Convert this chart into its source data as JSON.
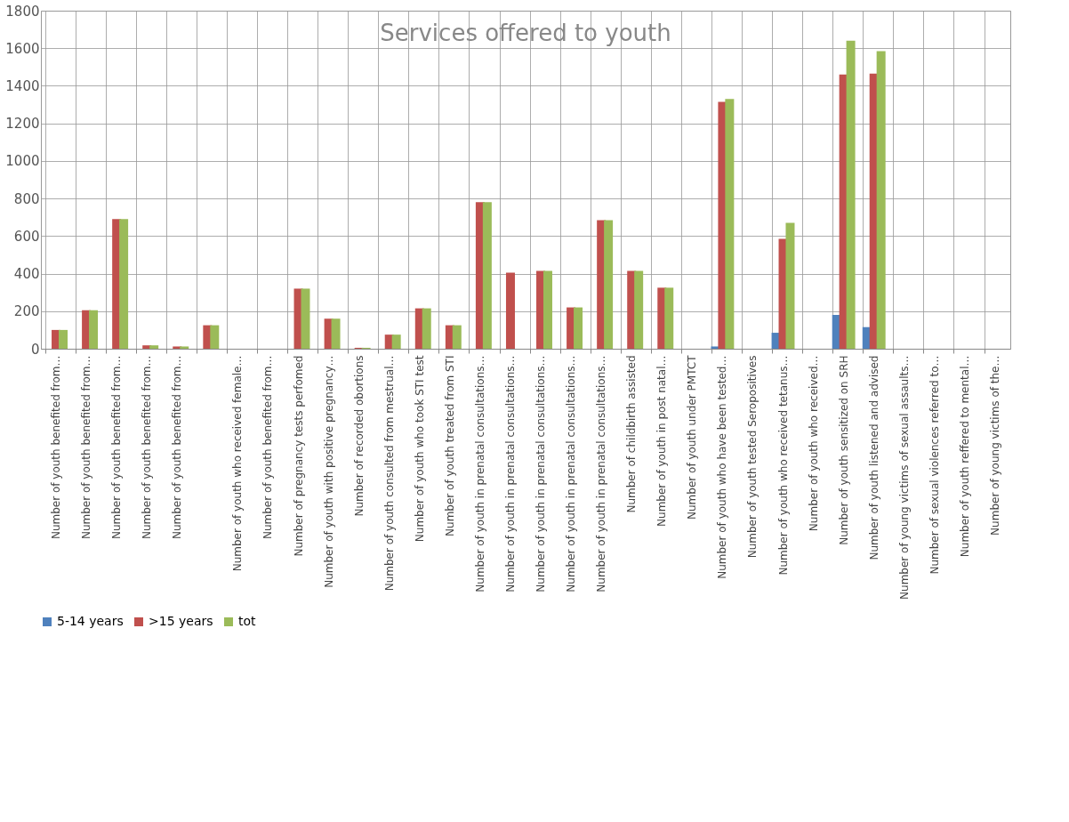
{
  "chart_data": {
    "type": "bar",
    "title": "Services offered to youth",
    "categories": [
      "Number of youth benefited from…",
      "Number of youth benefited from…",
      "Number of youth benefited from…",
      "Number of youth benefited from…",
      "Number of youth benefited from…",
      null,
      "Number of youth who received female…",
      "Number of youth benefited from…",
      "Number of pregnancy tests perfomed",
      "Number of youth with positive pregnancy…",
      "Number of recorded obortions",
      "Number of youth consulted from mestrual…",
      "Number of youth who took STI test",
      "Number of youth treated from STI",
      "Number of youth in prenatal consultations…",
      "Number of youth in prenatal consultations…",
      "Number of youth in prenatal consultations…",
      "Number of youth in prenatal consultations…",
      "Number of youth in prenatal consultations…",
      "Number of childbirth assisted",
      "Number of youth in post natal…",
      "Number of youth under PMTCT",
      "Number of youth who have been tested…",
      "Number of youth tested Seropositives",
      "Number of youth who received tetanus…",
      "Number of youth who received…",
      "Number of youth sensitized on SRH",
      "Number of youth listened and advised",
      "Number of young victims of sexual assaults…",
      "Number of sexual violences referred to…",
      "Number of youth reffered to mental…",
      "Number of young victims of the…"
    ],
    "series": [
      {
        "name": "5-14 years",
        "color": "#4f81bd",
        "values": [
          0,
          0,
          0,
          0,
          0,
          0,
          0,
          0,
          0,
          0,
          0,
          0,
          0,
          0,
          0,
          0,
          0,
          0,
          0,
          0,
          0,
          0,
          12,
          0,
          85,
          0,
          180,
          115,
          0,
          0,
          0,
          0
        ]
      },
      {
        "name": ">15 years",
        "color": "#c0504d",
        "values": [
          100,
          205,
          690,
          18,
          12,
          125,
          0,
          0,
          320,
          160,
          5,
          75,
          215,
          125,
          780,
          405,
          415,
          220,
          685,
          415,
          325,
          0,
          1315,
          0,
          585,
          0,
          1460,
          1465,
          0,
          0,
          0,
          0
        ]
      },
      {
        "name": "tot",
        "color": "#9bbb59",
        "values": [
          100,
          205,
          690,
          18,
          12,
          125,
          0,
          0,
          320,
          160,
          5,
          75,
          215,
          125,
          780,
          null,
          415,
          220,
          685,
          415,
          325,
          0,
          1330,
          0,
          670,
          0,
          1640,
          1585,
          0,
          0,
          0,
          0
        ]
      }
    ],
    "ylim": [
      0,
      1800
    ],
    "yticks": [
      0,
      200,
      400,
      600,
      800,
      1000,
      1200,
      1400,
      1600,
      1800
    ],
    "grid": true,
    "legend": "bottom"
  }
}
